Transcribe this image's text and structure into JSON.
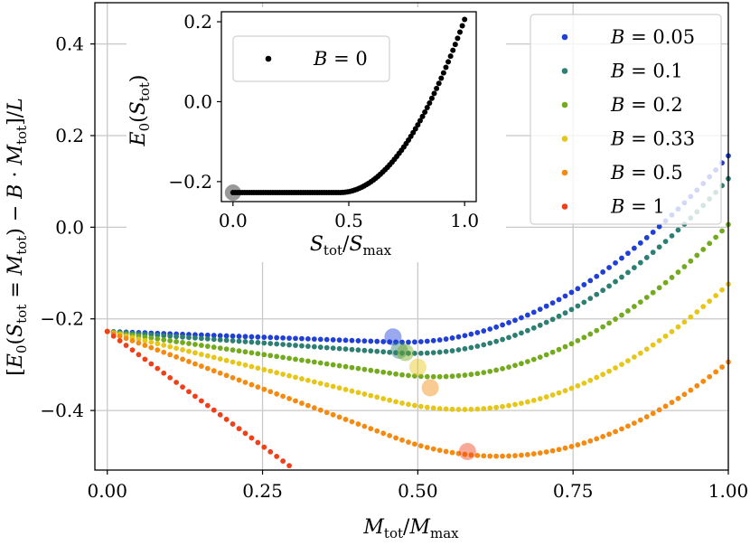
{
  "chart_data": [
    {
      "type": "scatter",
      "id": "main",
      "xlabel": "M_tot / M_max",
      "ylabel": "[E_0(S_tot = M_tot) − B · M_tot] / L",
      "xlim": [
        -0.02,
        1.0
      ],
      "ylim": [
        -0.53,
        0.49
      ],
      "xticks": [
        0.0,
        0.25,
        0.5,
        0.75,
        1.0
      ],
      "xtick_labels": [
        "0.00",
        "0.25",
        "0.50",
        "0.75",
        "1.00"
      ],
      "yticks": [
        -0.4,
        -0.2,
        0.0,
        0.2,
        0.4
      ],
      "ytick_labels": [
        "−0.4",
        "−0.2",
        "0.0",
        "0.2",
        "0.4"
      ],
      "grid": true,
      "legend_position": "top-right",
      "point_count": 100,
      "base_curve": {
        "description": "B = 0 ground state energy per site E_0(S_tot)/L",
        "e_start": -0.2275,
        "flat_until": 0.4605,
        "e_end": 0.2059
      },
      "series": [
        {
          "name": "B = 0.05",
          "B": 0.05,
          "color": "#1f3fd6",
          "minimum": {
            "x": 0.46,
            "y": -0.2395
          }
        },
        {
          "name": "B = 0.1",
          "B": 0.1,
          "color": "#2e7f73",
          "minimum": {
            "x": 0.47,
            "y": -0.2685
          }
        },
        {
          "name": "B = 0.2",
          "B": 0.2,
          "color": "#74aa1e",
          "minimum": {
            "x": 0.48,
            "y": -0.2735
          }
        },
        {
          "name": "B = 0.33",
          "B": 0.33,
          "color": "#e6c619",
          "minimum": {
            "x": 0.5,
            "y": -0.3055
          }
        },
        {
          "name": "B = 0.5",
          "B": 0.5,
          "color": "#f58a10",
          "minimum": {
            "x": 0.52,
            "y": -0.3505
          }
        },
        {
          "name": "B = 1",
          "B": 1.0,
          "color": "#f0401a",
          "minimum": {
            "x": 0.58,
            "y": -0.4895
          }
        }
      ]
    },
    {
      "type": "scatter",
      "id": "inset",
      "xlabel": "S_tot / S_max",
      "ylabel": "E_0(S_tot)",
      "xlim": [
        -0.05,
        1.05
      ],
      "ylim": [
        -0.25,
        0.225
      ],
      "xticks": [
        0.0,
        0.5,
        1.0
      ],
      "xtick_labels": [
        "0.0",
        "0.5",
        "1.0"
      ],
      "yticks": [
        -0.2,
        0.0,
        0.2
      ],
      "ytick_labels": [
        "−0.2",
        "0.0",
        "0.2"
      ],
      "grid": false,
      "legend_position": "top-left",
      "series": [
        {
          "name": "B = 0",
          "B": 0,
          "color": "#000000",
          "minimum": {
            "x": 0.0,
            "y": -0.2275
          }
        }
      ]
    }
  ]
}
